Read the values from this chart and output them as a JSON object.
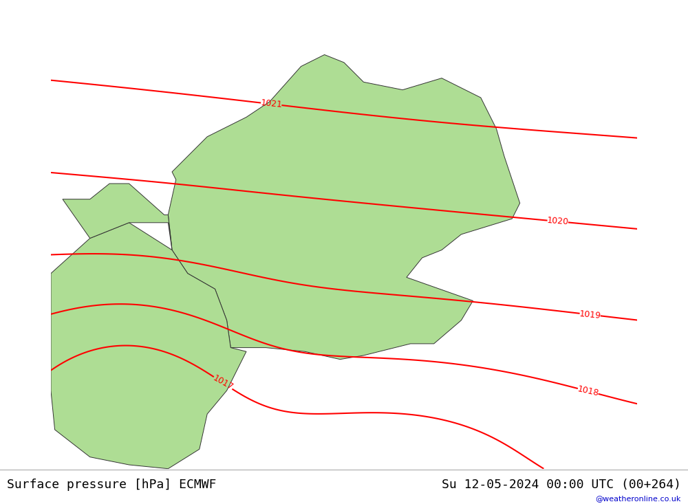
{
  "title_left": "Surface pressure [hPa] ECMWF",
  "title_right": "Su 12-05-2024 00:00 UTC (00+264)",
  "watermark": "@weatheronline.co.uk",
  "bg_land_green": "#aedd94",
  "bg_sea_gray": "#c8c8c8",
  "contour_color": "#ff0000",
  "border_color": "#333333",
  "figsize": [
    10.0,
    7.33
  ],
  "dpi": 100,
  "map_extent": [
    3.0,
    18.0,
    44.5,
    56.5
  ],
  "pressure_levels": [
    1017,
    1018,
    1019,
    1020,
    1021
  ],
  "title_fontsize": 13
}
